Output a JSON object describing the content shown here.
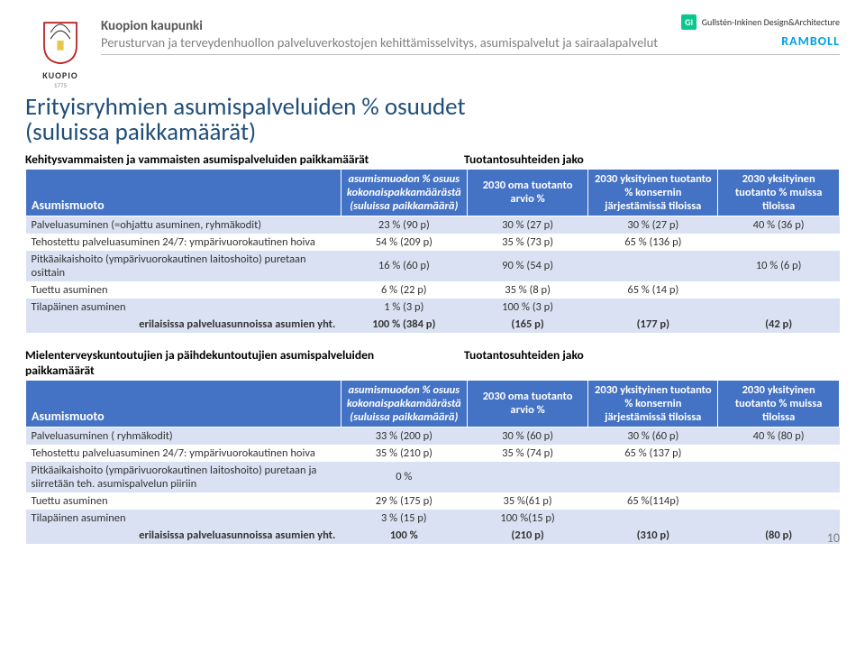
{
  "header": {
    "org": "Kuopion kaupunki",
    "desc": "Perusturvan ja terveydenhuollon palveluverkostojen kehittämisselvitys, asumispalvelut ja sairaalapalvelut",
    "gi_badge": "GI",
    "gi_text": "Gullstén-Inkinen Design&Architecture",
    "ramboll": "RAMBOLL",
    "logo_text": "KUOPIO",
    "logo_year": "1775"
  },
  "title_line1": "Erityisryhmien  asumispalveluiden % osuudet",
  "title_line2": "(suluissa paikkamäärät)",
  "cols": {
    "c0": "Asumismuoto",
    "c1": "asumismuodon % osuus kokonaispakkamäärästä (suluissa paikkamäärä)",
    "c2": "2030 oma tuotanto arvio %",
    "c3": "2030 yksityinen tuotanto % konsernin järjestämissä tiloissa",
    "c4": "2030 yksityinen tuotanto % muissa tiloissa"
  },
  "section1": {
    "left_title": "Kehitysvammaisten ja vammaisten  asumispalveluiden paikkamäärät",
    "right_title": "Tuotantosuhteiden jako",
    "rows": [
      {
        "label": "Palveluasuminen (=ohjattu asuminen, ryhmäkodit)",
        "v1": "23 % (90 p)",
        "v2": "30 % (27 p)",
        "v3": "30 % (27 p)",
        "v4": "40 % (36 p)",
        "band": "a"
      },
      {
        "label": "Tehostettu palveluasuminen 24/7: ympärivuorokautinen hoiva",
        "v1": "54 % (209 p)",
        "v2": "35 % (73 p)",
        "v3": "65 % (136 p)",
        "v4": "",
        "band": "b"
      },
      {
        "label": "Pitkäaikaishoito (ympärivuorokautinen laitoshoito) puretaan osittain",
        "v1": "16 % (60 p)",
        "v2": "90 % (54 p)",
        "v3": "",
        "v4": "10 % (6 p)",
        "band": "a"
      },
      {
        "label": "Tuettu asuminen",
        "v1": "6 % (22 p)",
        "v2": "35 % (8 p)",
        "v3": "65 % (14 p)",
        "v4": "",
        "band": "b"
      },
      {
        "label": "Tilapäinen asuminen",
        "v1": "1 % (3 p)",
        "v2": "100 % (3 p)",
        "v3": "",
        "v4": "",
        "band": "a"
      }
    ],
    "total": {
      "label": "erilaisissa palveluasunnoissa asumien  yht.",
      "v1": "100 % (384 p)",
      "v2": "(165 p)",
      "v3": "(177 p)",
      "v4": "(42 p)"
    }
  },
  "section2": {
    "left_title": "Mielenterveyskuntoutujien  ja päihdekuntoutujien asumispalveluiden paikkamäärät",
    "right_title": "Tuotantosuhteiden jako",
    "rows": [
      {
        "label": "Palveluasuminen ( ryhmäkodit)",
        "v1": "33 % (200 p)",
        "v2": "30 % (60 p)",
        "v3": "30 % (60 p)",
        "v4": "40 % (80 p)",
        "band": "a"
      },
      {
        "label": "Tehostettu palveluasuminen 24/7: ympärivuorokautinen hoiva",
        "v1": "35 % (210 p)",
        "v2": "35 % (74 p)",
        "v3": "65 % (137 p)",
        "v4": "",
        "band": "b"
      },
      {
        "label": "Pitkäaikaishoito (ympärivuorokautinen laitoshoito) puretaan ja siirretään teh. asumispalvelun piiriin",
        "v1": "0 %",
        "v2": "",
        "v3": "",
        "v4": "",
        "band": "a"
      },
      {
        "label": "Tuettu asuminen",
        "v1": "29 % (175 p)",
        "v2": "35 %(61 p)",
        "v3": "65 %(114p)",
        "v4": "",
        "band": "b"
      },
      {
        "label": "Tilapäinen asuminen",
        "v1": "3 % (15 p)",
        "v2": "100 %(15 p)",
        "v3": "",
        "v4": "",
        "band": "a"
      }
    ],
    "total": {
      "label": "erilaisissa palveluasunnoissa asumien yht.",
      "v1": "100 %",
      "v2": "(210 p)",
      "v3": "(310 p)",
      "v4": "(80 p)"
    }
  },
  "page_number": "10"
}
